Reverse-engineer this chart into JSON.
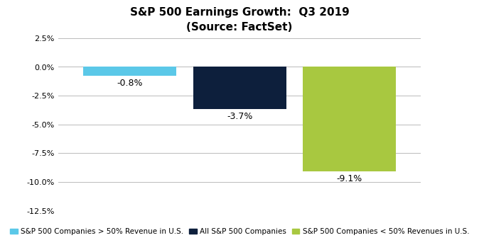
{
  "title_line1": "S&P 500 Earnings Growth:  Q3 2019",
  "title_line2": "(Source: FactSet)",
  "values": [
    -0.8,
    -3.7,
    -9.1
  ],
  "bar_colors": [
    "#5BC8E8",
    "#0D1F3C",
    "#A8C840"
  ],
  "bar_labels": [
    "-0.8%",
    "-3.7%",
    "-9.1%"
  ],
  "ylim": [
    -12.5,
    2.5
  ],
  "yticks": [
    2.5,
    0.0,
    -2.5,
    -5.0,
    -7.5,
    -10.0,
    -12.5
  ],
  "ytick_labels": [
    "2.5%",
    "0.0%",
    "-2.5%",
    "-5.0%",
    "-7.5%",
    "-10.0%",
    "-12.5%"
  ],
  "legend_labels": [
    "S&P 500 Companies > 50% Revenue in U.S.",
    "All S&P 500 Companies",
    "S&P 500 Companies < 50% Revenues in U.S."
  ],
  "legend_colors": [
    "#5BC8E8",
    "#0D1F3C",
    "#A8C840"
  ],
  "background_color": "#FFFFFF",
  "grid_color": "#BBBBBB",
  "title_fontsize": 11,
  "label_fontsize": 9,
  "tick_fontsize": 8,
  "legend_fontsize": 7.5
}
